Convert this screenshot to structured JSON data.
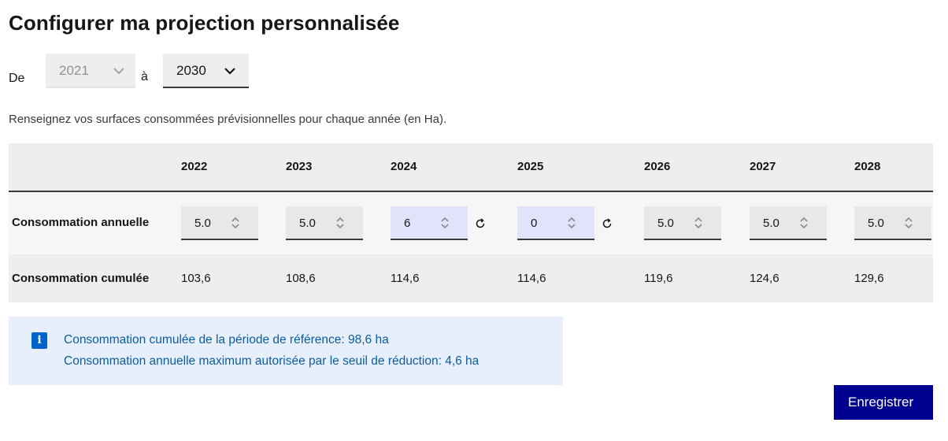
{
  "title": "Configurer ma projection personnalisée",
  "period": {
    "from_label": "De",
    "from_value": "2021",
    "to_label": "à",
    "to_value": "2030"
  },
  "instructions": "Renseignez vos surfaces consommées prévisionnelles pour chaque année (en Ha).",
  "table": {
    "years": [
      "2022",
      "2023",
      "2024",
      "2025",
      "2026",
      "2027",
      "2028"
    ],
    "annual_label": "Consommation annuelle",
    "annual_values": [
      "5.0",
      "5.0",
      "6",
      "0",
      "5.0",
      "5.0",
      "5.0"
    ],
    "modified": [
      false,
      false,
      true,
      true,
      false,
      false,
      false
    ],
    "cumulative_label": "Consommation cumulée",
    "cumulative_values": [
      "103,6",
      "108,6",
      "114,6",
      "114,6",
      "119,6",
      "124,6",
      "129,6"
    ]
  },
  "alert": {
    "line1": "Consommation cumulée de la période de référence: 98,6 ha",
    "line2": "Consommation annuelle maximum autorisée par le seuil de réduction: 4,6 ha"
  },
  "save_label": "Enregistrer",
  "colors": {
    "primary": "#000091",
    "info": "#0063cb",
    "info_bg": "#e7effd",
    "modified_bg": "#e2e2fb"
  }
}
